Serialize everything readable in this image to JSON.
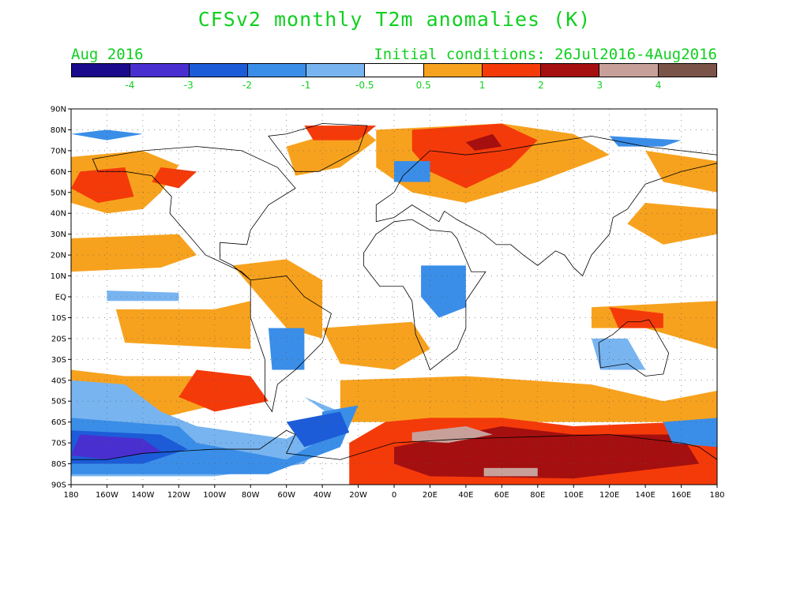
{
  "header": {
    "title": "CFSv2 monthly T2m anomalies (K)",
    "period": "Aug 2016",
    "initial_conditions": "Initial conditions: 26Jul2016-4Aug2016"
  },
  "colorbar": {
    "colors": [
      "#1a0a8c",
      "#4a2fd0",
      "#1c5cd8",
      "#3a8ee8",
      "#78b4f0",
      "#ffffff",
      "#f7a21e",
      "#f53a0a",
      "#a50f0f",
      "#c8a09a",
      "#7a5448"
    ],
    "labels": [
      "-4",
      "-3",
      "-2",
      "-1",
      "-0.5",
      "0.5",
      "1",
      "2",
      "3",
      "4"
    ]
  },
  "axes": {
    "lat_labels": [
      "90N",
      "80N",
      "70N",
      "60N",
      "50N",
      "40N",
      "30N",
      "20N",
      "10N",
      "EQ",
      "10S",
      "20S",
      "30S",
      "40S",
      "50S",
      "60S",
      "70S",
      "80S",
      "90S"
    ],
    "lon_labels": [
      "180",
      "160W",
      "140W",
      "120W",
      "100W",
      "80W",
      "60W",
      "40W",
      "20W",
      "0",
      "20E",
      "40E",
      "60E",
      "80E",
      "100E",
      "120E",
      "140E",
      "160E",
      "180"
    ]
  },
  "map_data": {
    "type": "anomaly-map",
    "region": "global",
    "variable": "T2m anomaly",
    "units": "K",
    "features": [
      {
        "name": "antarctic-warm",
        "lon": [
          -10,
          180
        ],
        "lat": [
          -90,
          -60
        ],
        "level": "2"
      },
      {
        "name": "antarctic-warm-core",
        "lon": [
          10,
          60
        ],
        "lat": [
          -68,
          -63
        ],
        "level": "4"
      },
      {
        "name": "east-antarctic-warm-core",
        "lon": [
          20,
          120
        ],
        "lat": [
          -88,
          -78
        ],
        "level": "3"
      },
      {
        "name": "ross-sea-cold",
        "lon": [
          -180,
          -110
        ],
        "lat": [
          -78,
          -63
        ],
        "level": "-3"
      },
      {
        "name": "weddell-cold",
        "lon": [
          -60,
          -10
        ],
        "lat": [
          -75,
          -50
        ],
        "level": "-2"
      },
      {
        "name": "barents-warm",
        "lon": [
          30,
          80
        ],
        "lat": [
          68,
          82
        ],
        "level": "2"
      },
      {
        "name": "north-pacific-warm",
        "lon": [
          -180,
          -120
        ],
        "lat": [
          35,
          65
        ],
        "level": "1"
      },
      {
        "name": "south-atlantic-warm",
        "lon": [
          -20,
          30
        ],
        "lat": [
          -50,
          -10
        ],
        "level": "0.5"
      },
      {
        "name": "central-africa-cool",
        "lon": [
          15,
          35
        ],
        "lat": [
          -5,
          15
        ],
        "level": "-1"
      },
      {
        "name": "north-pacific-cool",
        "lon": [
          -180,
          -140
        ],
        "lat": [
          70,
          75
        ],
        "level": "-2"
      }
    ]
  }
}
